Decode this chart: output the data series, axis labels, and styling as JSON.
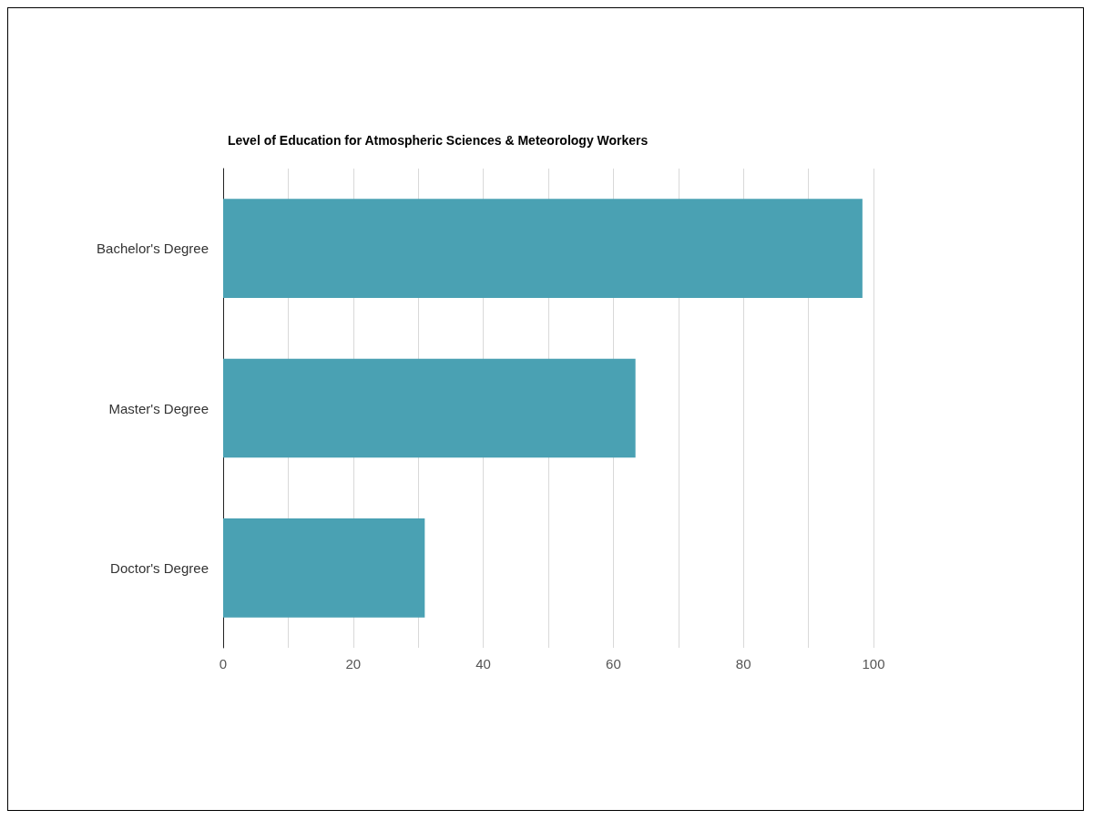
{
  "chart_data": {
    "type": "bar",
    "orientation": "horizontal",
    "title": "Level of Education for Atmospheric Sciences & Meteorology Workers",
    "categories": [
      "Bachelor's Degree",
      "Master's Degree",
      "Doctor's Degree"
    ],
    "values": [
      98.3,
      63.4,
      31.0
    ],
    "color": "#4aa1b3",
    "xlim": [
      0,
      100
    ],
    "xticks": [
      0,
      {
        "value": 10,
        "label": null
      },
      20,
      {
        "value": 30,
        "label": null
      },
      40,
      {
        "value": 50,
        "label": null
      },
      60,
      {
        "value": 70,
        "label": null
      },
      80,
      {
        "value": 90,
        "label": null
      },
      100
    ],
    "grid": "x"
  }
}
